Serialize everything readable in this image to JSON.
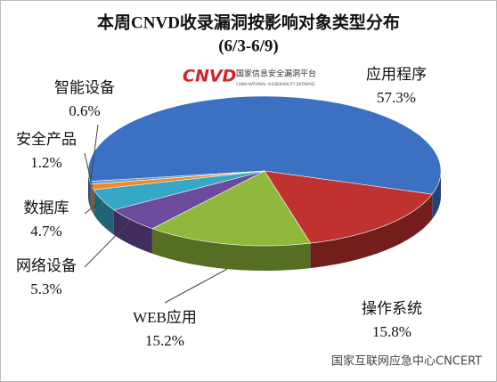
{
  "chart_data": {
    "type": "pie3d",
    "title": "本周CNVD收录漏洞按影响对象类型分布",
    "subtitle": "(6/3-6/9)",
    "logo": "CNVD",
    "logo_text": "国家信息安全漏洞平台",
    "logo_subtext": "CHINA NATIONAL VULNERABILITY DATABASE",
    "watermark": "国家互联网应急中心CNCERT",
    "categories": [
      "应用程序",
      "操作系统",
      "WEB应用",
      "网络设备",
      "数据库",
      "安全产品",
      "智能设备"
    ],
    "values": [
      57.3,
      15.8,
      15.2,
      5.3,
      4.7,
      1.2,
      0.6
    ],
    "value_labels": [
      "57.3%",
      "15.8%",
      "15.2%",
      "5.3%",
      "4.7%",
      "1.2%",
      "0.6%"
    ],
    "colors": [
      "#3b70c2",
      "#c0322f",
      "#8fb83c",
      "#6b4b9c",
      "#35a8c6",
      "#f08a24",
      "#5b9bd5"
    ]
  }
}
